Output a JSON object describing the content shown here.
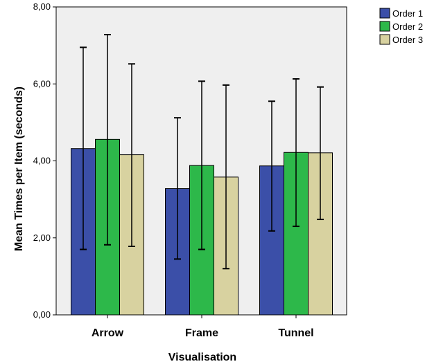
{
  "chart_data": {
    "type": "bar",
    "xlabel": "Visualisation",
    "ylabel": "Mean Times per Item (seconds)",
    "ylim": [
      0,
      8
    ],
    "yticks": [
      "0,00",
      "2,00",
      "4,00",
      "6,00",
      "8,00"
    ],
    "ytick_values": [
      0,
      2,
      4,
      6,
      8
    ],
    "categories": [
      "Arrow",
      "Frame",
      "Tunnel"
    ],
    "series": [
      {
        "name": "Order 1",
        "color": "#3b4fa8",
        "values": [
          4.32,
          3.28,
          3.87
        ],
        "err_low": [
          1.7,
          1.45,
          2.18
        ],
        "err_high": [
          6.95,
          5.12,
          5.55
        ]
      },
      {
        "name": "Order 2",
        "color": "#2db84a",
        "values": [
          4.56,
          3.88,
          4.22
        ],
        "err_low": [
          1.82,
          1.7,
          2.3
        ],
        "err_high": [
          7.28,
          6.07,
          6.13
        ]
      },
      {
        "name": "Order 3",
        "color": "#d8d2a0",
        "values": [
          4.16,
          3.58,
          4.21
        ],
        "err_low": [
          1.78,
          1.2,
          2.48
        ],
        "err_high": [
          6.52,
          5.97,
          5.92
        ]
      }
    ],
    "legend_position": "top-right",
    "plot_background": "#efefef",
    "grid": false,
    "error_bars": true
  }
}
